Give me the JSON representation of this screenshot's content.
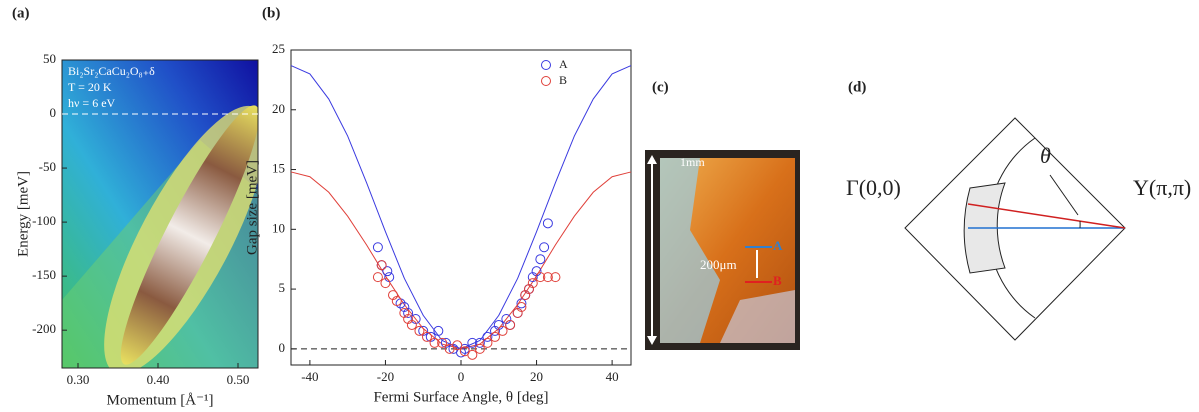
{
  "chart_data": [
    {
      "type": "heatmap",
      "panel": "(a)",
      "xlabel": "Momentum [Å⁻¹]",
      "ylabel": "Energy [meV]",
      "annotations": [
        "Bi₂Sr₂CaCu₂O₈₊δ",
        "T = 20 K",
        "hν = 6 eV"
      ],
      "xlim": [
        0.28,
        0.525
      ],
      "xticks": [
        {
          "value": 0.3,
          "label": "0.30"
        },
        {
          "value": 0.4,
          "label": "0.40"
        },
        {
          "value": 0.5,
          "label": "0.50"
        }
      ],
      "ylim": [
        -235,
        50
      ],
      "yticks": [
        50,
        0,
        -50,
        -100,
        -150,
        -200
      ],
      "hline": 0
    },
    {
      "type": "scatter",
      "panel": "(b)",
      "xlabel": "Fermi Surface Angle, θ [deg]",
      "ylabel": "Gap size [meV]",
      "xlim": [
        -45,
        45
      ],
      "xticks": [
        -40,
        -20,
        0,
        20,
        40
      ],
      "ylim": [
        -1.35,
        25
      ],
      "yticks": [
        0,
        5,
        10,
        15,
        20,
        25
      ],
      "hline": 0,
      "legend": "upper right",
      "series": [
        {
          "name": "A",
          "color": "#3a3ae0",
          "x": [
            -22,
            -21,
            -19.5,
            -19,
            -16,
            -15,
            -14,
            -12,
            -10,
            -8,
            -6,
            -4,
            -2,
            0,
            1,
            3,
            5,
            7,
            9,
            10,
            12,
            13,
            15,
            16,
            17,
            18,
            19,
            20,
            21,
            22,
            23
          ],
          "values": [
            8.5,
            7,
            6.5,
            6,
            3.8,
            3.5,
            3,
            2.5,
            1.5,
            1,
            1.5,
            0.5,
            0,
            -0.3,
            0,
            0.5,
            0.5,
            1,
            1.5,
            2,
            2.5,
            2,
            3,
            3.8,
            4.5,
            5,
            6,
            6.5,
            7.5,
            8.5,
            10.5
          ]
        },
        {
          "name": "B",
          "color": "#e0403a",
          "x": [
            -22,
            -21,
            -20,
            -18,
            -17,
            -15,
            -14,
            -13,
            -11,
            -9,
            -7,
            -5,
            -3,
            -1,
            1,
            3,
            5,
            7,
            9,
            11,
            13,
            15,
            16,
            17,
            18,
            19,
            21,
            23,
            25
          ],
          "values": [
            6,
            7,
            5.5,
            4.5,
            4,
            3,
            2.5,
            2,
            1.5,
            1,
            0.5,
            0.5,
            0,
            0.3,
            -0.2,
            -0.5,
            0,
            0.5,
            1,
            1.5,
            2,
            3,
            3.5,
            4.5,
            5,
            5.5,
            6,
            6,
            6
          ]
        }
      ],
      "fits": [
        {
          "color": "#3a3ae0",
          "x": [
            -45,
            -40,
            -35,
            -30,
            -25,
            -20,
            -15,
            -10,
            -5,
            0,
            5,
            10,
            15,
            20,
            25,
            30,
            35,
            40,
            45
          ],
          "values": [
            23.7,
            23,
            20.9,
            17.8,
            13.9,
            9.8,
            5.9,
            2.8,
            0.7,
            0,
            0.7,
            2.8,
            5.9,
            9.8,
            13.9,
            17.8,
            20.9,
            23,
            23.7
          ]
        },
        {
          "color": "#e0403a",
          "x": [
            -45,
            -40,
            -35,
            -30,
            -25,
            -20,
            -15,
            -10,
            -5,
            0,
            5,
            10,
            15,
            20,
            25,
            30,
            35,
            40,
            45
          ],
          "values": [
            14.8,
            14.4,
            13.1,
            11.1,
            8.7,
            6.1,
            3.7,
            1.7,
            0.4,
            0,
            0.4,
            1.7,
            3.7,
            6.1,
            8.7,
            11.1,
            13.1,
            14.4,
            14.8
          ]
        }
      ]
    }
  ],
  "photo": {
    "panel": "(c)",
    "scale": "1mm",
    "spacing": "200μm",
    "labels": [
      "A",
      "B"
    ]
  },
  "diagram": {
    "panel": "(d)",
    "left": "Γ(0,0)",
    "right": "Y(π,π)",
    "angle": "θ"
  }
}
